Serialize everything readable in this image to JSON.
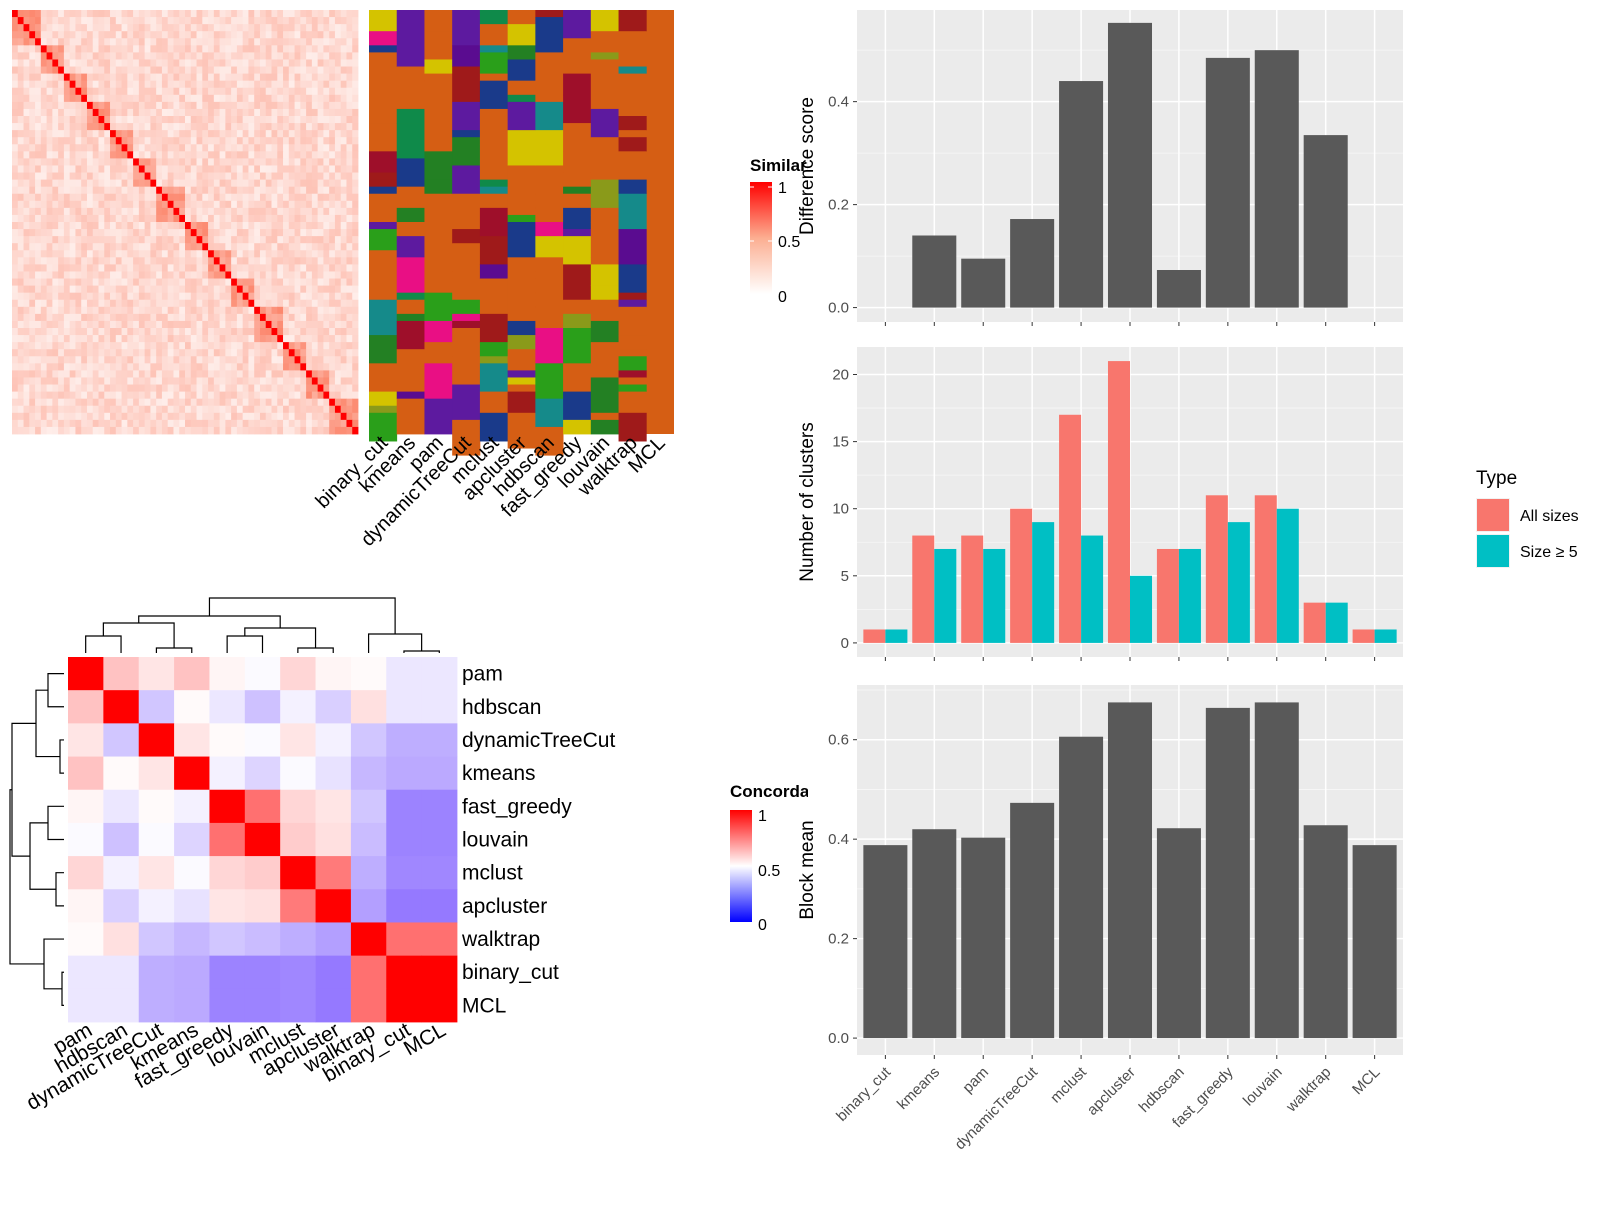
{
  "chart_data": [
    {
      "type": "heatmap",
      "id": "similarity",
      "legend": {
        "title": "Similarity",
        "ticks": [
          "0",
          "0.5",
          "1"
        ]
      },
      "method_labels": [
        "binary_cut",
        "kmeans",
        "pam",
        "dynamicTreeCut",
        "mclust",
        "apcluster",
        "hdbscan",
        "fast_greedy",
        "louvain",
        "walktrap",
        "MCL"
      ]
    },
    {
      "type": "heatmap",
      "id": "concordance",
      "legend": {
        "title": "Concordance",
        "ticks": [
          "0",
          "0.5",
          "1"
        ]
      },
      "labels": [
        "pam",
        "hdbscan",
        "dynamicTreeCut",
        "kmeans",
        "fast_greedy",
        "louvain",
        "mclust",
        "apcluster",
        "walktrap",
        "binary_cut",
        "MCL"
      ],
      "colors": {
        "low": "#0000ff",
        "mid": "#ffffff",
        "high": "#ff0000"
      },
      "values": [
        [
          1.0,
          0.62,
          0.55,
          0.62,
          0.52,
          0.49,
          0.58,
          0.52,
          0.51,
          0.45,
          0.45
        ],
        [
          0.62,
          1.0,
          0.38,
          0.51,
          0.45,
          0.37,
          0.47,
          0.4,
          0.56,
          0.45,
          0.45
        ],
        [
          0.55,
          0.38,
          1.0,
          0.55,
          0.51,
          0.49,
          0.55,
          0.47,
          0.38,
          0.33,
          0.33
        ],
        [
          0.62,
          0.51,
          0.55,
          1.0,
          0.47,
          0.41,
          0.49,
          0.44,
          0.35,
          0.32,
          0.32
        ],
        [
          0.52,
          0.45,
          0.51,
          0.47,
          1.0,
          0.78,
          0.58,
          0.55,
          0.38,
          0.24,
          0.24
        ],
        [
          0.49,
          0.37,
          0.49,
          0.41,
          0.78,
          1.0,
          0.6,
          0.56,
          0.36,
          0.24,
          0.24
        ],
        [
          0.58,
          0.47,
          0.55,
          0.49,
          0.58,
          0.6,
          1.0,
          0.76,
          0.33,
          0.25,
          0.25
        ],
        [
          0.52,
          0.4,
          0.47,
          0.44,
          0.55,
          0.56,
          0.76,
          1.0,
          0.3,
          0.22,
          0.22
        ],
        [
          0.51,
          0.56,
          0.38,
          0.35,
          0.38,
          0.36,
          0.33,
          0.3,
          1.0,
          0.78,
          0.78
        ],
        [
          0.45,
          0.45,
          0.33,
          0.32,
          0.24,
          0.24,
          0.25,
          0.22,
          0.78,
          1.0,
          1.0
        ],
        [
          0.45,
          0.45,
          0.33,
          0.32,
          0.24,
          0.24,
          0.25,
          0.22,
          0.78,
          1.0,
          1.0
        ]
      ]
    },
    {
      "type": "bar",
      "id": "difference",
      "categories": [
        "binary_cut",
        "kmeans",
        "pam",
        "dynamicTreeCut",
        "mclust",
        "apcluster",
        "hdbscan",
        "fast_greedy",
        "louvain",
        "walktrap",
        "MCL"
      ],
      "values": [
        0,
        0.14,
        0.095,
        0.172,
        0.44,
        0.553,
        0.073,
        0.485,
        0.5,
        0.335,
        0
      ],
      "ylabel": "Difference score",
      "yticks": [
        0.0,
        0.2,
        0.4
      ],
      "ylim": [
        -0.028,
        0.578
      ]
    },
    {
      "type": "bar",
      "id": "clusters",
      "categories": [
        "binary_cut",
        "kmeans",
        "pam",
        "dynamicTreeCut",
        "mclust",
        "apcluster",
        "hdbscan",
        "fast_greedy",
        "louvain",
        "walktrap",
        "MCL"
      ],
      "series": [
        {
          "name": "All sizes",
          "values": [
            1,
            8,
            8,
            10,
            17,
            21,
            7,
            11,
            11,
            3,
            1
          ]
        },
        {
          "name": "Size ≥ 5",
          "values": [
            1,
            7,
            7,
            9,
            8,
            5,
            7,
            9,
            10,
            3,
            1
          ]
        }
      ],
      "ylabel": "Number of clusters",
      "yticks": [
        0,
        5,
        10,
        15,
        20
      ],
      "ylim": [
        -1.05,
        22.05
      ],
      "legend": {
        "title": "Type",
        "position": "right"
      }
    },
    {
      "type": "bar",
      "id": "blockmean",
      "categories": [
        "binary_cut",
        "kmeans",
        "pam",
        "dynamicTreeCut",
        "mclust",
        "apcluster",
        "hdbscan",
        "fast_greedy",
        "louvain",
        "walktrap",
        "MCL"
      ],
      "values": [
        0.388,
        0.42,
        0.403,
        0.473,
        0.606,
        0.675,
        0.422,
        0.664,
        0.675,
        0.428,
        0.388
      ],
      "ylabel": "Block mean",
      "yticks": [
        0.0,
        0.2,
        0.4,
        0.6
      ],
      "ylim": [
        -0.034,
        0.71
      ]
    }
  ],
  "colors": {
    "panel_bg": "#ebebeb",
    "bar": "#595959",
    "series": [
      "#f8766d",
      "#00bfc4"
    ],
    "similarity_high": "#ff0000",
    "class_fill": "#d55e14"
  }
}
